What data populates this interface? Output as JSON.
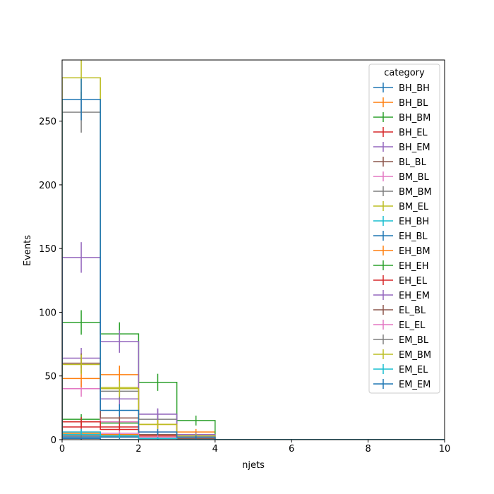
{
  "chart_data": {
    "type": "histogram",
    "xlabel": "njets",
    "ylabel": "Events",
    "xlim": [
      0,
      10
    ],
    "ylim": [
      0,
      298
    ],
    "x_ticks": [
      0,
      2,
      4,
      6,
      8,
      10
    ],
    "y_ticks": [
      0,
      50,
      100,
      150,
      200,
      250
    ],
    "bin_edges": [
      0,
      1,
      2,
      3,
      4,
      5,
      6,
      7,
      8,
      9,
      10
    ],
    "legend_title": "category",
    "legend_position": "top-right",
    "grid": false,
    "series": [
      {
        "name": "BH_BH",
        "color": "#1f77b4",
        "values": [
          1,
          0,
          0,
          0,
          0,
          0,
          0,
          0,
          0,
          0
        ],
        "errors": [
          1,
          0,
          0,
          0,
          0,
          0,
          0,
          0,
          0,
          0
        ]
      },
      {
        "name": "BH_BL",
        "color": "#ff7f0e",
        "values": [
          5,
          4,
          2,
          1,
          0,
          0,
          0,
          0,
          0,
          0
        ],
        "errors": [
          2.2,
          2,
          1.4,
          1,
          0,
          0,
          0,
          0,
          0,
          0
        ]
      },
      {
        "name": "BH_BM",
        "color": "#2ca02c",
        "values": [
          16,
          13,
          4,
          1,
          0,
          0,
          0,
          0,
          0,
          0
        ],
        "errors": [
          4,
          3.6,
          2,
          1,
          0,
          0,
          0,
          0,
          0,
          0
        ]
      },
      {
        "name": "BH_EL",
        "color": "#d62728",
        "values": [
          10,
          8,
          3,
          1,
          0,
          0,
          0,
          0,
          0,
          0
        ],
        "errors": [
          3.2,
          2.8,
          1.7,
          1,
          0,
          0,
          0,
          0,
          0,
          0
        ]
      },
      {
        "name": "BH_EM",
        "color": "#9467bd",
        "values": [
          64,
          32,
          20,
          3,
          0,
          0,
          0,
          0,
          0,
          0
        ],
        "errors": [
          8,
          5.7,
          4.5,
          1.7,
          0,
          0,
          0,
          0,
          0,
          0
        ]
      },
      {
        "name": "BL_BL",
        "color": "#8c564b",
        "values": [
          3,
          2,
          1,
          0,
          0,
          0,
          0,
          0,
          0,
          0
        ],
        "errors": [
          1.7,
          1.4,
          1,
          0,
          0,
          0,
          0,
          0,
          0,
          0
        ]
      },
      {
        "name": "BM_BL",
        "color": "#e377c2",
        "values": [
          40,
          14,
          6,
          2,
          0,
          0,
          0,
          0,
          0,
          0
        ],
        "errors": [
          6.3,
          3.7,
          2.4,
          1.4,
          0,
          0,
          0,
          0,
          0,
          0
        ]
      },
      {
        "name": "BM_BM",
        "color": "#7f7f7f",
        "values": [
          257,
          38,
          16,
          4,
          0,
          0,
          0,
          0,
          0,
          0
        ],
        "errors": [
          16,
          6.2,
          4,
          2,
          0,
          0,
          0,
          0,
          0,
          0
        ]
      },
      {
        "name": "BM_EL",
        "color": "#bcbd22",
        "values": [
          284,
          41,
          12,
          4,
          0,
          0,
          0,
          0,
          0,
          0
        ],
        "errors": [
          16.9,
          6.4,
          3.5,
          2,
          0,
          0,
          0,
          0,
          0,
          0
        ]
      },
      {
        "name": "EH_BH",
        "color": "#17becf",
        "values": [
          4,
          3,
          1,
          0,
          0,
          0,
          0,
          0,
          0,
          0
        ],
        "errors": [
          2,
          1.7,
          1,
          0,
          0,
          0,
          0,
          0,
          0,
          0
        ]
      },
      {
        "name": "EH_BL",
        "color": "#1f77b4",
        "values": [
          2,
          2,
          1,
          0,
          0,
          0,
          0,
          0,
          0,
          0
        ],
        "errors": [
          1.4,
          1.4,
          1,
          0,
          0,
          0,
          0,
          0,
          0,
          0
        ]
      },
      {
        "name": "EH_BM",
        "color": "#ff7f0e",
        "values": [
          48,
          51,
          12,
          6,
          0,
          0,
          0,
          0,
          0,
          0
        ],
        "errors": [
          6.9,
          7.1,
          3.5,
          2.4,
          0,
          0,
          0,
          0,
          0,
          0
        ]
      },
      {
        "name": "EH_EH",
        "color": "#2ca02c",
        "values": [
          92,
          83,
          45,
          15,
          0,
          0,
          0,
          0,
          0,
          0
        ],
        "errors": [
          9.6,
          9.1,
          6.7,
          3.9,
          0,
          0,
          0,
          0,
          0,
          0
        ]
      },
      {
        "name": "EH_EL",
        "color": "#d62728",
        "values": [
          14,
          10,
          4,
          1,
          0,
          0,
          0,
          0,
          0,
          0
        ],
        "errors": [
          3.7,
          3.2,
          2,
          1,
          0,
          0,
          0,
          0,
          0,
          0
        ]
      },
      {
        "name": "EH_EM",
        "color": "#9467bd",
        "values": [
          143,
          77,
          20,
          4,
          0,
          0,
          0,
          0,
          0,
          0
        ],
        "errors": [
          12,
          8.8,
          4.5,
          2,
          0,
          0,
          0,
          0,
          0,
          0
        ]
      },
      {
        "name": "EL_BL",
        "color": "#8c564b",
        "values": [
          60,
          17,
          4,
          1,
          0,
          0,
          0,
          0,
          0,
          0
        ],
        "errors": [
          7.7,
          4.1,
          2,
          1,
          0,
          0,
          0,
          0,
          0,
          0
        ]
      },
      {
        "name": "EL_EL",
        "color": "#e377c2",
        "values": [
          6,
          5,
          2,
          0,
          0,
          0,
          0,
          0,
          0,
          0
        ],
        "errors": [
          2.4,
          2.2,
          1.4,
          0,
          0,
          0,
          0,
          0,
          0,
          0
        ]
      },
      {
        "name": "EM_BL",
        "color": "#7f7f7f",
        "values": [
          3,
          3,
          1,
          0,
          0,
          0,
          0,
          0,
          0,
          0
        ],
        "errors": [
          1.7,
          1.7,
          1,
          0,
          0,
          0,
          0,
          0,
          0,
          0
        ]
      },
      {
        "name": "EM_BM",
        "color": "#bcbd22",
        "values": [
          59,
          40,
          12,
          3,
          0,
          0,
          0,
          0,
          0,
          0
        ],
        "errors": [
          7.7,
          6.3,
          3.5,
          1.7,
          0,
          0,
          0,
          0,
          0,
          0
        ]
      },
      {
        "name": "EM_EL",
        "color": "#17becf",
        "values": [
          6,
          3,
          1,
          0,
          0,
          0,
          0,
          0,
          0,
          0
        ],
        "errors": [
          2.4,
          1.7,
          1,
          0,
          0,
          0,
          0,
          0,
          0,
          0
        ]
      },
      {
        "name": "EM_EM",
        "color": "#1f77b4",
        "values": [
          267,
          23,
          6,
          2,
          0,
          0,
          0,
          0,
          0,
          0
        ],
        "errors": [
          16.3,
          4.8,
          2.4,
          1.4,
          0,
          0,
          0,
          0,
          0,
          0
        ]
      }
    ]
  }
}
